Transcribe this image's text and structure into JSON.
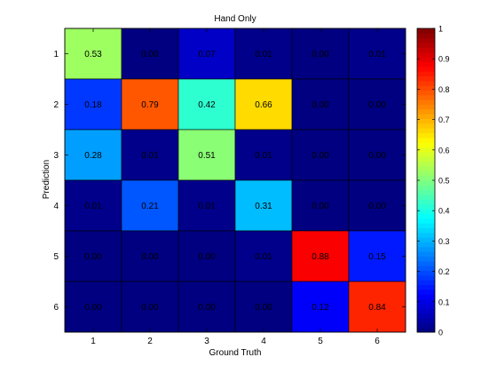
{
  "chart_data": {
    "type": "heatmap",
    "title": "Hand Only",
    "xlabel": "Ground Truth",
    "ylabel": "Prediction",
    "x_categories": [
      "1",
      "2",
      "3",
      "4",
      "5",
      "6"
    ],
    "y_categories": [
      "1",
      "2",
      "3",
      "4",
      "5",
      "6"
    ],
    "values": [
      [
        0.53,
        0.0,
        0.07,
        0.01,
        0.0,
        0.01
      ],
      [
        0.18,
        0.79,
        0.42,
        0.66,
        0.0,
        0.0
      ],
      [
        0.28,
        0.01,
        0.51,
        0.01,
        0.0,
        0.0
      ],
      [
        0.01,
        0.21,
        0.01,
        0.31,
        0.0,
        0.0
      ],
      [
        0.0,
        0.0,
        0.0,
        0.01,
        0.88,
        0.15
      ],
      [
        0.0,
        0.0,
        0.0,
        0.0,
        0.12,
        0.84
      ]
    ],
    "labels": [
      [
        "0.53",
        "0.00",
        "0.07",
        "0.01",
        "0.00",
        "0.01"
      ],
      [
        "0.18",
        "0.79",
        "0.42",
        "0.66",
        "0.00",
        "0.00"
      ],
      [
        "0.28",
        "0.01",
        "0.51",
        "0.01",
        "0.00",
        "0.00"
      ],
      [
        "0.01",
        "0.21",
        "0.01",
        "0.31",
        "0.00",
        "0.00"
      ],
      [
        "0.00",
        "0.00",
        "0.00",
        "0.01",
        "0.88",
        "0.15"
      ],
      [
        "0.00",
        "0.00",
        "0.00",
        "0.00",
        "0.12",
        "0.84"
      ]
    ],
    "colorscale": "jet",
    "clim": [
      0,
      1
    ],
    "colorbar_ticks": [
      "0",
      "0.1",
      "0.2",
      "0.3",
      "0.4",
      "0.5",
      "0.6",
      "0.7",
      "0.8",
      "0.9",
      "1"
    ],
    "colorbar_values": [
      0,
      0.1,
      0.2,
      0.3,
      0.4,
      0.5,
      0.6,
      0.7,
      0.8,
      0.9,
      1
    ]
  }
}
